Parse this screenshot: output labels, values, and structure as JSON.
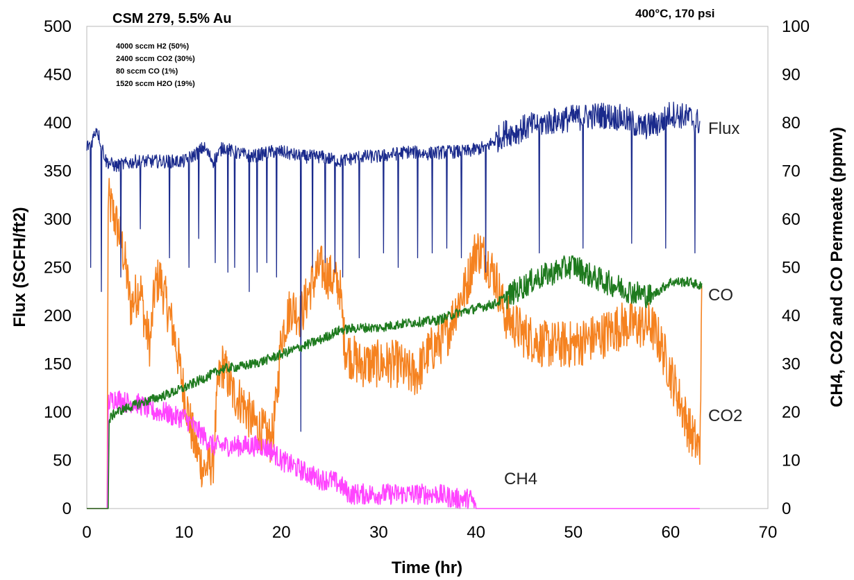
{
  "chart_data": {
    "type": "line",
    "title": "CSM 279,  5.5% Au",
    "subtitle": "400°C, 170 psi",
    "feed_conditions": [
      "4000 sccm H2 (50%)",
      "2400 sccm CO2 (30%)",
      "80 sccm CO (1%)",
      "1520 sccm H2O (19%)"
    ],
    "xlabel": "Time (hr)",
    "ylabel_left": "Flux (SCFH/ft2)",
    "ylabel_right": "CH4, CO2 and CO Permeate (ppmv)",
    "xlim": [
      0,
      70
    ],
    "ylim_left": [
      0,
      500
    ],
    "ylim_right": [
      0,
      100
    ],
    "x_ticks": [
      "0",
      "10",
      "20",
      "30",
      "40",
      "50",
      "60",
      "70"
    ],
    "y_left_ticks": [
      "0",
      "50",
      "100",
      "150",
      "200",
      "250",
      "300",
      "350",
      "400",
      "450",
      "500"
    ],
    "y_right_ticks": [
      "0",
      "10",
      "20",
      "30",
      "40",
      "50",
      "60",
      "70",
      "80",
      "90",
      "100"
    ],
    "grid": false,
    "series": [
      {
        "name": "Flux",
        "axis": "left",
        "color": "#1a2a8c",
        "x": [
          0,
          0.5,
          1,
          2,
          3,
          5,
          7,
          10,
          11.5,
          12,
          13,
          14,
          15,
          17,
          19,
          20,
          22,
          24,
          26,
          28,
          30,
          33,
          35,
          37,
          39,
          41,
          42.5,
          43,
          44,
          45,
          47,
          50,
          53,
          55,
          57,
          59,
          60,
          62,
          63
        ],
        "values": [
          375,
          380,
          395,
          360,
          355,
          360,
          360,
          360,
          370,
          375,
          360,
          375,
          370,
          365,
          370,
          370,
          365,
          365,
          360,
          365,
          365,
          370,
          368,
          370,
          370,
          375,
          385,
          390,
          390,
          395,
          400,
          405,
          408,
          405,
          395,
          400,
          410,
          405,
          400
        ],
        "dips_x": [
          0.4,
          1.5,
          3.5,
          5.5,
          8.5,
          10.5,
          11.5,
          13.2,
          14.5,
          15.2,
          16.7,
          17.5,
          18.5,
          19.5,
          22,
          23.2,
          24.5,
          25.5,
          26.3,
          28,
          30.5,
          32,
          34,
          35.5,
          37,
          38.5,
          41,
          46.5,
          51,
          56,
          59.5,
          62.5
        ],
        "dips_values": [
          250,
          225,
          240,
          290,
          260,
          250,
          280,
          255,
          245,
          250,
          225,
          245,
          255,
          240,
          80,
          250,
          255,
          245,
          240,
          260,
          265,
          250,
          260,
          265,
          270,
          260,
          245,
          265,
          270,
          275,
          270,
          265
        ]
      },
      {
        "name": "CO",
        "axis": "right",
        "color": "#1e7a1e",
        "x": [
          0,
          2.2,
          2.3,
          2.5,
          3,
          5,
          8,
          10,
          12,
          14,
          16,
          18,
          20,
          22,
          24,
          26,
          28,
          30,
          33,
          36,
          38,
          40,
          42,
          44,
          46,
          48,
          50,
          52,
          54,
          56,
          58,
          60,
          62,
          63.2
        ],
        "values": [
          0,
          0,
          18,
          19,
          20,
          21.5,
          23.5,
          25,
          27,
          29,
          29.5,
          30.5,
          32,
          33.5,
          35,
          37,
          37.5,
          37.5,
          38.5,
          39,
          40.5,
          41.5,
          42.5,
          45,
          47.5,
          49,
          50.5,
          48,
          46.5,
          45,
          44,
          47,
          47,
          46
        ]
      },
      {
        "name": "CO2",
        "axis": "right",
        "color": "#f58220",
        "x": [
          0,
          2.1,
          2.2,
          2.6,
          3.5,
          4,
          4.5,
          5,
          5.5,
          6,
          6.5,
          7,
          7.5,
          8,
          9,
          10,
          11,
          12,
          13,
          13.5,
          14,
          15,
          16,
          17,
          18,
          19,
          19.5,
          20,
          21,
          22,
          23,
          24,
          25,
          26,
          26.5,
          27,
          28,
          30,
          32,
          33,
          34,
          35,
          37,
          38,
          39,
          40,
          41,
          42,
          43,
          45,
          47,
          50,
          53,
          55,
          57,
          58,
          59,
          60,
          61,
          62,
          63,
          63.2
        ],
        "values": [
          0,
          0,
          64,
          62,
          56,
          50,
          42,
          44,
          46,
          38,
          34,
          46,
          48,
          44,
          36,
          24,
          14,
          8,
          10,
          26,
          30,
          24,
          22,
          18,
          16,
          14,
          22,
          36,
          42,
          40,
          46,
          50,
          48,
          46,
          34,
          32,
          30,
          30,
          30,
          28,
          28,
          32,
          36,
          42,
          46,
          54,
          52,
          48,
          40,
          36,
          34,
          34,
          36,
          38,
          38,
          38,
          34,
          28,
          22,
          16,
          12,
          42
        ]
      },
      {
        "name": "CH4",
        "axis": "right",
        "color": "#ff44ff",
        "x": [
          0,
          2.1,
          2.2,
          3,
          4,
          5,
          6,
          7,
          8,
          9,
          10,
          11,
          12,
          13,
          14,
          15,
          16,
          17,
          18,
          19,
          20,
          21,
          22,
          23,
          24,
          25,
          26,
          27,
          30,
          33,
          36,
          38,
          39.5,
          40,
          41,
          45,
          47,
          55,
          63
        ],
        "values": [
          0,
          0,
          22,
          23,
          22,
          22,
          21,
          20,
          20,
          19,
          19,
          17,
          15,
          13,
          13,
          13,
          13,
          13,
          13,
          12,
          10,
          9,
          8,
          7,
          6,
          6,
          5,
          3,
          3,
          3,
          3,
          2,
          2,
          0,
          0,
          0,
          0,
          0,
          0
        ]
      }
    ],
    "annotations": [
      "Flux",
      "CO",
      "CO2",
      "CH4"
    ]
  }
}
